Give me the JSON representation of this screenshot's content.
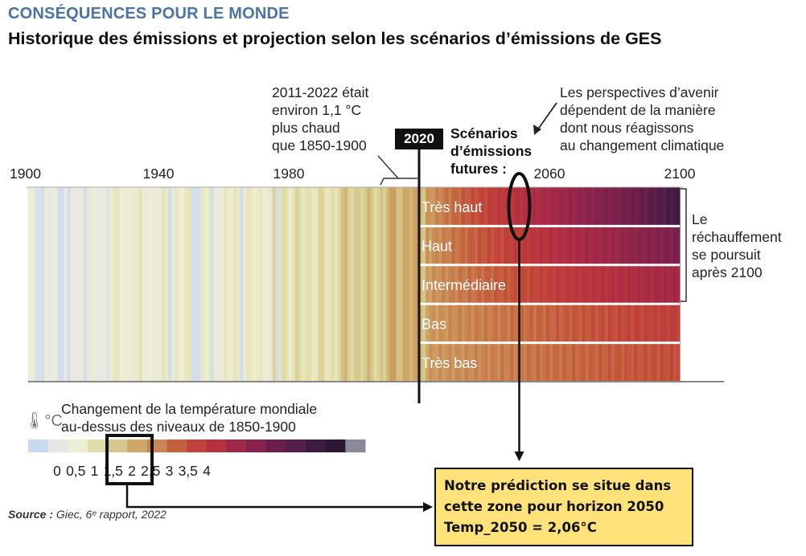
{
  "header": {
    "kicker": "CONSÉQUENCES POUR LE MONDE",
    "title": "Historique des émissions et projection selon les scénarios d’émissions de GES"
  },
  "annotations": {
    "left_note": [
      "2011-2022 était",
      "environ 1,1 °C",
      "plus chaud",
      "que 1850-1900"
    ],
    "right_note": [
      "Les perspectives d’avenir",
      "dépendent de la manière",
      "dont nous réagissons",
      "au changement climatique"
    ],
    "badge": "2020",
    "scenario_title": [
      "Scénarios",
      "d’émissions",
      "futures :"
    ],
    "warming_note": [
      "Le",
      "réchauffement",
      "se poursuit",
      "après 2100"
    ],
    "callout": [
      "Notre prédiction se situe dans",
      "cette zone pour horizon 2050",
      "Temp_2050 = 2,06°C"
    ]
  },
  "legend": {
    "title_lines": [
      "Changement de la température mondiale",
      "au-dessus des niveaux de 1850-1900"
    ],
    "icon": "thermometer-celsius-icon",
    "tick_labels": [
      "0",
      "0,5",
      "1",
      "1,5",
      "2",
      "2,5",
      "3",
      "3,5",
      "4"
    ],
    "tick_values": [
      0,
      0.5,
      1,
      1.5,
      2,
      2.5,
      3,
      3.5,
      4
    ],
    "color_steps": [
      "#c6dcee",
      "#e6e6e6",
      "#eeeed4",
      "#e2deaa",
      "#d6c78c",
      "#cfa766",
      "#c98552",
      "#c5613e",
      "#c1423a",
      "#b63140",
      "#9f2848",
      "#86234c",
      "#6a1f4c",
      "#53204c",
      "#3c1c40",
      "#2d1733",
      "#8a8a9a"
    ]
  },
  "source": {
    "label": "Source :",
    "text": " Giec, 6ᵉ rapport, 2022"
  },
  "chart_data": {
    "type": "heatmap",
    "title": "Historique des émissions et projection selon les scénarios d’émissions de GES",
    "x_tick_labels": [
      "1900",
      "1940",
      "1980",
      "2020",
      "2060",
      "2100"
    ],
    "x_ticks": [
      1900,
      1940,
      1980,
      2020,
      2060,
      2100
    ],
    "xlim": [
      1900,
      2100
    ],
    "scenarios": [
      "Très haut",
      "Haut",
      "Intermédiaire",
      "Bas",
      "Très bas"
    ],
    "historical_years_to": 2020,
    "unit": "°C",
    "highlight_year": 2050,
    "highlight_scenario": "Très haut",
    "highlight_value": 2.06,
    "scenario_end_values": [
      4.0,
      3.4,
      2.8,
      2.1,
      1.9
    ]
  }
}
